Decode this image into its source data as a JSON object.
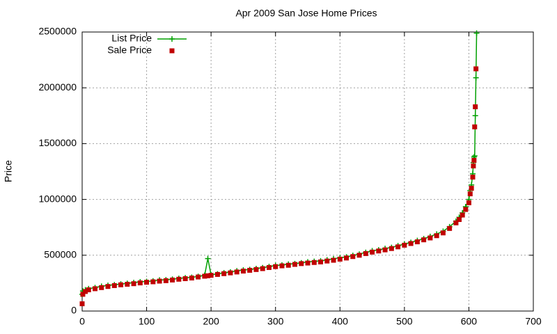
{
  "chart_data": {
    "type": "line",
    "title": "Apr 2009 San Jose Home Prices",
    "ylabel": "Price",
    "x": [
      0,
      1,
      5,
      10,
      20,
      30,
      40,
      50,
      60,
      70,
      80,
      90,
      100,
      110,
      120,
      130,
      140,
      150,
      160,
      170,
      180,
      190,
      195,
      200,
      210,
      220,
      230,
      240,
      250,
      260,
      270,
      280,
      290,
      300,
      310,
      320,
      330,
      340,
      350,
      360,
      370,
      380,
      390,
      400,
      410,
      420,
      430,
      440,
      450,
      460,
      470,
      480,
      490,
      500,
      510,
      520,
      530,
      540,
      550,
      560,
      570,
      580,
      585,
      590,
      595,
      600,
      602,
      604,
      606,
      607,
      608,
      609,
      610,
      611,
      612
    ],
    "series": [
      {
        "name": "List Price",
        "color": "#00a000",
        "style": "linespoints",
        "values": [
          150000,
          180000,
          190000,
          200000,
          210000,
          222000,
          230000,
          235000,
          242000,
          248000,
          255000,
          262000,
          265000,
          270000,
          278000,
          280000,
          285000,
          292000,
          298000,
          302000,
          310000,
          320000,
          470000,
          325000,
          333000,
          342000,
          350000,
          360000,
          368000,
          372000,
          380000,
          388000,
          398000,
          408000,
          412000,
          420000,
          425000,
          432000,
          440000,
          445000,
          450000,
          458000,
          468000,
          478000,
          485000,
          498000,
          510000,
          525000,
          540000,
          548000,
          560000,
          570000,
          585000,
          600000,
          615000,
          632000,
          648000,
          668000,
          690000,
          715000,
          755000,
          805000,
          840000,
          880000,
          935000,
          1000000,
          1080000,
          1130000,
          1230000,
          1330000,
          1380000,
          1390000,
          1750000,
          2090000,
          2490000
        ]
      },
      {
        "name": "Sale Price",
        "color": "#c00000",
        "style": "points",
        "values": [
          65000,
          150000,
          175000,
          190000,
          200000,
          210000,
          220000,
          228000,
          235000,
          240000,
          245000,
          252000,
          258000,
          262000,
          268000,
          272000,
          278000,
          285000,
          290000,
          296000,
          305000,
          312000,
          316000,
          320000,
          328000,
          335000,
          342000,
          350000,
          358000,
          365000,
          372000,
          380000,
          390000,
          398000,
          405000,
          410000,
          418000,
          425000,
          430000,
          435000,
          440000,
          448000,
          455000,
          465000,
          475000,
          488000,
          500000,
          515000,
          528000,
          538000,
          548000,
          560000,
          575000,
          590000,
          605000,
          620000,
          638000,
          655000,
          675000,
          700000,
          740000,
          790000,
          820000,
          860000,
          910000,
          970000,
          1050000,
          1100000,
          1200000,
          1300000,
          1350000,
          1650000,
          1830000,
          2170000,
          null
        ]
      }
    ],
    "xlim": [
      0,
      700
    ],
    "xticks": [
      0,
      100,
      200,
      300,
      400,
      500,
      600,
      700
    ],
    "ylim": [
      0,
      2500000
    ],
    "yticks": [
      0,
      500000,
      1000000,
      1500000,
      2000000,
      2500000
    ],
    "grid": true,
    "legend": "top-left"
  }
}
